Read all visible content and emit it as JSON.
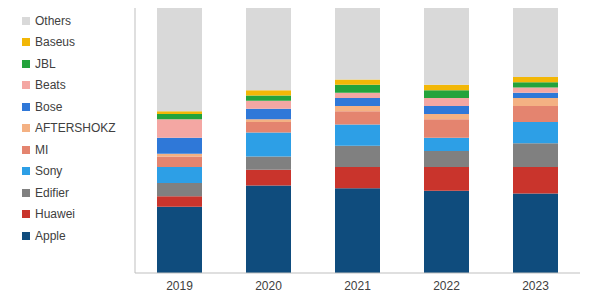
{
  "chart_data": {
    "type": "bar",
    "stacked": true,
    "categories": [
      "2019",
      "2020",
      "2021",
      "2022",
      "2023"
    ],
    "ylim": [
      0,
      100
    ],
    "tick_labels": "x",
    "legend": "left",
    "series": [
      {
        "name": "Apple",
        "color": "#0f4c7d",
        "values": [
          25,
          33,
          32,
          31,
          30
        ]
      },
      {
        "name": "Huawei",
        "color": "#c9342c",
        "values": [
          4,
          6,
          8,
          9,
          10
        ]
      },
      {
        "name": "Edifier",
        "color": "#808080",
        "values": [
          5,
          5,
          8,
          6,
          9
        ]
      },
      {
        "name": "Sony",
        "color": "#2d9fe6",
        "values": [
          6,
          9,
          8,
          5,
          8
        ]
      },
      {
        "name": "MI",
        "color": "#e4846f",
        "values": [
          4,
          4,
          5,
          7,
          6
        ]
      },
      {
        "name": "AFTERSHOKZ",
        "color": "#f4b183",
        "values": [
          1,
          1,
          2,
          2,
          3
        ]
      },
      {
        "name": "Bose",
        "color": "#2f78d8",
        "values": [
          6,
          4,
          3,
          3,
          2
        ]
      },
      {
        "name": "Beats",
        "color": "#f4a7a3",
        "values": [
          7,
          3,
          2,
          3,
          2
        ]
      },
      {
        "name": "JBL",
        "color": "#23a33c",
        "values": [
          2,
          2,
          3,
          3,
          2
        ]
      },
      {
        "name": "Baseus",
        "color": "#f2b707",
        "values": [
          1,
          2,
          2,
          2,
          2
        ]
      },
      {
        "name": "Others",
        "color": "#d9d9d9",
        "values": [
          39,
          31,
          27,
          29,
          26
        ]
      }
    ]
  }
}
